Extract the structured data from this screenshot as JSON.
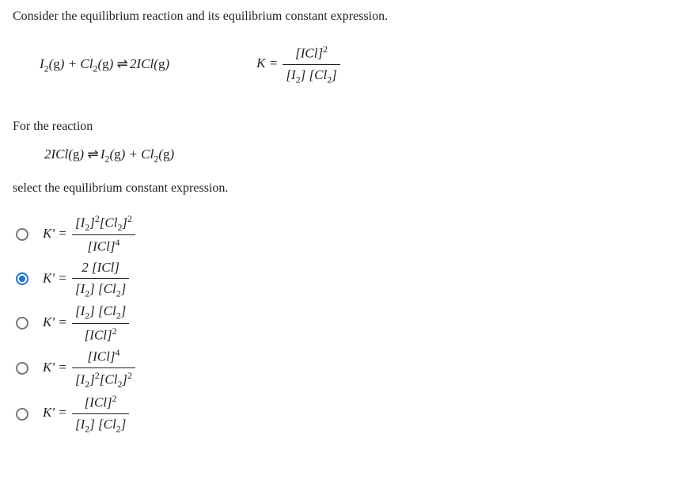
{
  "intro": "Consider the equilibrium reaction and its equilibrium constant expression.",
  "given_reaction_html": "I<sub>2</sub>(<span class='upright'>g</span>) + Cl<sub>2</sub>(<span class='upright'>g</span>) <span class='arrows'>&#8652;</span> 2ICl(<span class='upright'>g</span>)",
  "given_K_lhs": "K =",
  "given_K_num": "[ICl]<sup>2</sup>",
  "given_K_den": "[I<sub>2</sub>] [Cl<sub>2</sub>]",
  "for_reaction_label": "For the reaction",
  "target_reaction_html": "2ICl(<span class='upright'>g</span>) <span class='arrows'>&#8652;</span> I<sub>2</sub>(<span class='upright'>g</span>) + Cl<sub>2</sub>(<span class='upright'>g</span>)",
  "select_label": "select the equilibrium constant expression.",
  "options": [
    {
      "lhs": "K' =",
      "num": "[I<sub>2</sub>]<sup>2</sup>[Cl<sub>2</sub>]<sup>2</sup>",
      "den": "[ICl]<sup>4</sup>",
      "selected": false
    },
    {
      "lhs": "K' =",
      "num": "2 [ICl]",
      "den": "[I<sub>2</sub>] [Cl<sub>2</sub>]",
      "selected": true
    },
    {
      "lhs": "K' =",
      "num": "[I<sub>2</sub>] [Cl<sub>2</sub>]",
      "den": "[ICl]<sup>2</sup>",
      "selected": false
    },
    {
      "lhs": "K' =",
      "num": "[ICl]<sup>4</sup>",
      "den": "[I<sub>2</sub>]<sup>2</sup>[Cl<sub>2</sub>]<sup>2</sup>",
      "selected": false
    },
    {
      "lhs": "K' =",
      "num": "[ICl]<sup>2</sup>",
      "den": "[I<sub>2</sub>] [Cl<sub>2</sub>]",
      "selected": false
    }
  ],
  "colors": {
    "text": "#222",
    "accent": "#1e73d6",
    "radio_border": "#777",
    "bg": "#ffffff"
  }
}
